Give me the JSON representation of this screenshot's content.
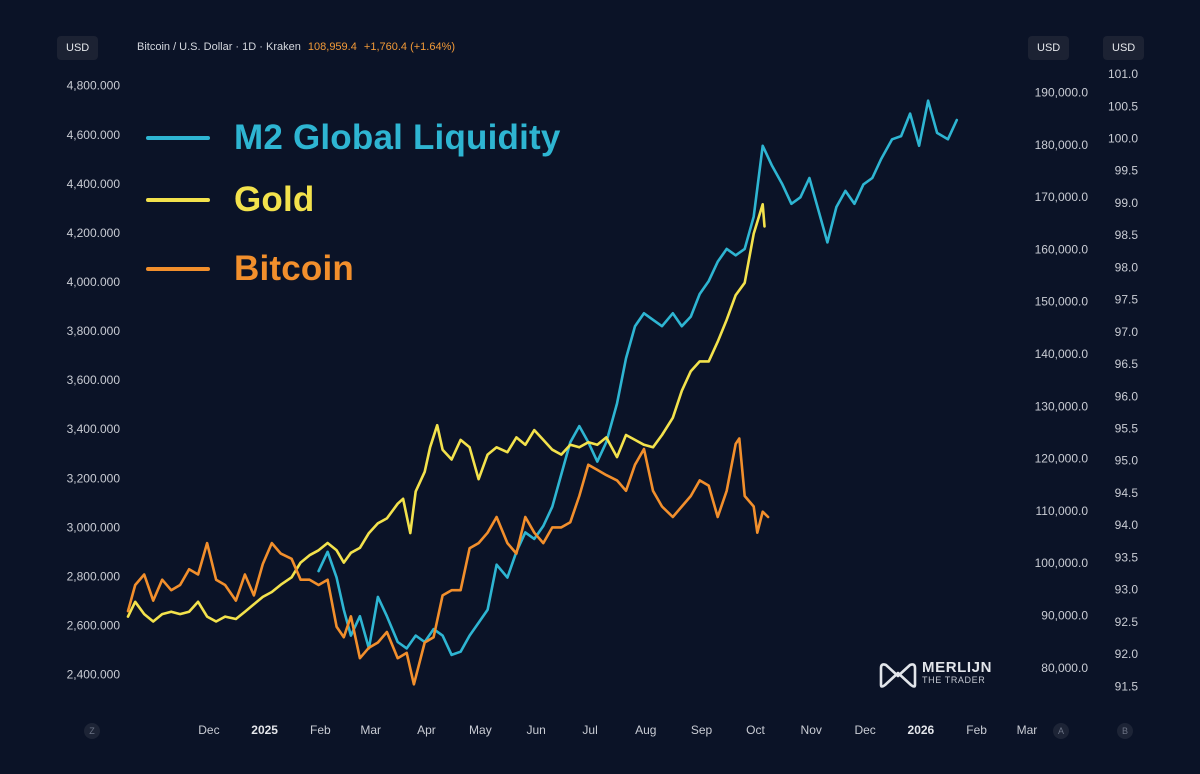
{
  "header": {
    "symbol": "Bitcoin / U.S. Dollar · 1D · Kraken",
    "price": "108,959.4",
    "change": "+1,760.4 (+1.64%)"
  },
  "badges": {
    "left_currency": "USD",
    "right_currency_1": "USD",
    "right_currency_2": "USD"
  },
  "corners": {
    "z": "Z",
    "a": "A",
    "b": "B"
  },
  "logo": {
    "main": "MERLIJN",
    "sub": "THE TRADER"
  },
  "chart_data": {
    "type": "line",
    "legend": [
      {
        "label": "M2 Global Liquidity",
        "color": "#2eb5d2"
      },
      {
        "label": "Gold",
        "color": "#f3e24c"
      },
      {
        "label": "Bitcoin",
        "color": "#f28f2c"
      }
    ],
    "legend_position": "top-left",
    "grid": false,
    "x_axis": {
      "ticks": [
        "Dec",
        "2025",
        "Feb",
        "Mar",
        "Apr",
        "May",
        "Jun",
        "Jul",
        "Aug",
        "Sep",
        "Oct",
        "Nov",
        "Dec",
        "2026",
        "Feb",
        "Mar"
      ],
      "bold_ticks": [
        "2025",
        "2026"
      ],
      "range": [
        "2024-11-01",
        "2026-03-01"
      ]
    },
    "y_axis_left": {
      "series": "Gold",
      "range": [
        2300,
        4900
      ],
      "ticks": [
        "2,400.000",
        "2,600.000",
        "2,800.000",
        "3,000.000",
        "3,200.000",
        "3,400.000",
        "3,600.000",
        "3,800.000",
        "4,000.000",
        "4,200.000",
        "4,400.000",
        "4,600.000",
        "4,800.000"
      ],
      "tick_values": [
        2400,
        2600,
        2800,
        3000,
        3200,
        3400,
        3600,
        3800,
        4000,
        4200,
        4400,
        4600,
        4800
      ]
    },
    "y_axis_right_1": {
      "series": "Bitcoin",
      "range": [
        74000,
        196000
      ],
      "ticks": [
        "80,000.0",
        "90,000.0",
        "100,000.0",
        "110,000.0",
        "120,000.0",
        "130,000.0",
        "140,000.0",
        "150,000.0",
        "160,000.0",
        "170,000.0",
        "180,000.0",
        "190,000.0"
      ],
      "tick_values": [
        80000,
        90000,
        100000,
        110000,
        120000,
        130000,
        140000,
        150000,
        160000,
        170000,
        180000,
        190000
      ]
    },
    "y_axis_right_2": {
      "series": "M2 Global Liquidity",
      "range": [
        91.3,
        101.2
      ],
      "ticks": [
        "91.5",
        "92.0",
        "92.5",
        "93.0",
        "93.5",
        "94.0",
        "94.5",
        "95.0",
        "95.5",
        "96.0",
        "96.5",
        "97.0",
        "97.5",
        "98.0",
        "98.5",
        "99.0",
        "99.5",
        "100.0",
        "100.5",
        "101.0"
      ],
      "tick_values": [
        91.5,
        92.0,
        92.5,
        93.0,
        93.5,
        94.0,
        94.5,
        95.0,
        95.5,
        96.0,
        96.5,
        97.0,
        97.5,
        98.0,
        98.5,
        99.0,
        99.5,
        100.0,
        100.5,
        101.0
      ]
    },
    "series": [
      {
        "name": "M2 Global Liquidity",
        "axis": "y_axis_right_2",
        "points": [
          [
            "2025-02-15",
            93.3
          ],
          [
            "2025-02-20",
            93.6
          ],
          [
            "2025-02-25",
            93.2
          ],
          [
            "2025-03-01",
            92.7
          ],
          [
            "2025-03-05",
            92.3
          ],
          [
            "2025-03-10",
            92.6
          ],
          [
            "2025-03-15",
            92.1
          ],
          [
            "2025-03-20",
            92.9
          ],
          [
            "2025-03-25",
            92.6
          ],
          [
            "2025-03-31",
            92.2
          ],
          [
            "2025-04-05",
            92.1
          ],
          [
            "2025-04-10",
            92.3
          ],
          [
            "2025-04-15",
            92.2
          ],
          [
            "2025-04-20",
            92.4
          ],
          [
            "2025-04-25",
            92.3
          ],
          [
            "2025-04-30",
            92.0
          ],
          [
            "2025-05-05",
            92.05
          ],
          [
            "2025-05-10",
            92.3
          ],
          [
            "2025-05-15",
            92.5
          ],
          [
            "2025-05-20",
            92.7
          ],
          [
            "2025-05-25",
            93.4
          ],
          [
            "2025-05-31",
            93.2
          ],
          [
            "2025-06-05",
            93.6
          ],
          [
            "2025-06-10",
            93.9
          ],
          [
            "2025-06-15",
            93.8
          ],
          [
            "2025-06-20",
            94.0
          ],
          [
            "2025-06-25",
            94.3
          ],
          [
            "2025-06-30",
            94.8
          ],
          [
            "2025-07-05",
            95.3
          ],
          [
            "2025-07-10",
            95.55
          ],
          [
            "2025-07-15",
            95.3
          ],
          [
            "2025-07-20",
            95.0
          ],
          [
            "2025-07-25",
            95.3
          ],
          [
            "2025-07-31",
            95.9
          ],
          [
            "2025-08-05",
            96.6
          ],
          [
            "2025-08-10",
            97.1
          ],
          [
            "2025-08-15",
            97.3
          ],
          [
            "2025-08-20",
            97.2
          ],
          [
            "2025-08-25",
            97.1
          ],
          [
            "2025-08-31",
            97.3
          ],
          [
            "2025-09-05",
            97.1
          ],
          [
            "2025-09-10",
            97.25
          ],
          [
            "2025-09-15",
            97.6
          ],
          [
            "2025-09-20",
            97.8
          ],
          [
            "2025-09-25",
            98.1
          ],
          [
            "2025-09-30",
            98.3
          ],
          [
            "2025-10-05",
            98.2
          ],
          [
            "2025-10-10",
            98.3
          ],
          [
            "2025-10-15",
            98.8
          ],
          [
            "2025-10-20",
            99.9
          ],
          [
            "2025-10-25",
            99.6
          ],
          [
            "2025-10-31",
            99.3
          ],
          [
            "2025-11-05",
            99.0
          ],
          [
            "2025-11-10",
            99.1
          ],
          [
            "2025-11-15",
            99.4
          ],
          [
            "2025-11-20",
            98.9
          ],
          [
            "2025-11-25",
            98.4
          ],
          [
            "2025-11-30",
            98.95
          ],
          [
            "2025-12-05",
            99.2
          ],
          [
            "2025-12-10",
            99.0
          ],
          [
            "2025-12-15",
            99.3
          ],
          [
            "2025-12-20",
            99.4
          ],
          [
            "2025-12-25",
            99.7
          ],
          [
            "2025-12-31",
            100.0
          ],
          [
            "2026-01-05",
            100.05
          ],
          [
            "2026-01-10",
            100.4
          ],
          [
            "2026-01-15",
            99.9
          ],
          [
            "2026-01-20",
            100.6
          ],
          [
            "2026-01-25",
            100.1
          ],
          [
            "2026-01-31",
            100.0
          ],
          [
            "2026-02-05",
            100.3
          ]
        ]
      },
      {
        "name": "Gold",
        "axis": "y_axis_left",
        "points": [
          [
            "2024-11-01",
            2640
          ],
          [
            "2024-11-05",
            2700
          ],
          [
            "2024-11-10",
            2650
          ],
          [
            "2024-11-15",
            2620
          ],
          [
            "2024-11-20",
            2650
          ],
          [
            "2024-11-25",
            2660
          ],
          [
            "2024-11-30",
            2650
          ],
          [
            "2024-12-05",
            2660
          ],
          [
            "2024-12-10",
            2700
          ],
          [
            "2024-12-15",
            2640
          ],
          [
            "2024-12-20",
            2620
          ],
          [
            "2024-12-25",
            2640
          ],
          [
            "2024-12-31",
            2630
          ],
          [
            "2025-01-05",
            2660
          ],
          [
            "2025-01-10",
            2690
          ],
          [
            "2025-01-15",
            2720
          ],
          [
            "2025-01-20",
            2740
          ],
          [
            "2025-01-25",
            2770
          ],
          [
            "2025-01-31",
            2800
          ],
          [
            "2025-02-05",
            2860
          ],
          [
            "2025-02-10",
            2890
          ],
          [
            "2025-02-15",
            2910
          ],
          [
            "2025-02-20",
            2940
          ],
          [
            "2025-02-25",
            2910
          ],
          [
            "2025-03-01",
            2860
          ],
          [
            "2025-03-05",
            2900
          ],
          [
            "2025-03-10",
            2920
          ],
          [
            "2025-03-15",
            2980
          ],
          [
            "2025-03-20",
            3020
          ],
          [
            "2025-03-25",
            3040
          ],
          [
            "2025-03-31",
            3100
          ],
          [
            "2025-04-03",
            3120
          ],
          [
            "2025-04-07",
            2980
          ],
          [
            "2025-04-10",
            3150
          ],
          [
            "2025-04-15",
            3230
          ],
          [
            "2025-04-18",
            3330
          ],
          [
            "2025-04-22",
            3420
          ],
          [
            "2025-04-25",
            3320
          ],
          [
            "2025-04-30",
            3280
          ],
          [
            "2025-05-05",
            3360
          ],
          [
            "2025-05-10",
            3330
          ],
          [
            "2025-05-15",
            3200
          ],
          [
            "2025-05-20",
            3300
          ],
          [
            "2025-05-25",
            3330
          ],
          [
            "2025-05-31",
            3310
          ],
          [
            "2025-06-05",
            3370
          ],
          [
            "2025-06-10",
            3340
          ],
          [
            "2025-06-15",
            3400
          ],
          [
            "2025-06-20",
            3360
          ],
          [
            "2025-06-25",
            3320
          ],
          [
            "2025-06-30",
            3300
          ],
          [
            "2025-07-05",
            3340
          ],
          [
            "2025-07-10",
            3330
          ],
          [
            "2025-07-15",
            3350
          ],
          [
            "2025-07-20",
            3340
          ],
          [
            "2025-07-25",
            3370
          ],
          [
            "2025-07-31",
            3290
          ],
          [
            "2025-08-05",
            3380
          ],
          [
            "2025-08-10",
            3360
          ],
          [
            "2025-08-15",
            3340
          ],
          [
            "2025-08-20",
            3330
          ],
          [
            "2025-08-25",
            3380
          ],
          [
            "2025-08-31",
            3450
          ],
          [
            "2025-09-05",
            3560
          ],
          [
            "2025-09-10",
            3640
          ],
          [
            "2025-09-15",
            3680
          ],
          [
            "2025-09-20",
            3680
          ],
          [
            "2025-09-25",
            3760
          ],
          [
            "2025-09-30",
            3850
          ],
          [
            "2025-10-05",
            3950
          ],
          [
            "2025-10-10",
            4000
          ],
          [
            "2025-10-15",
            4200
          ],
          [
            "2025-10-20",
            4320
          ],
          [
            "2025-10-21",
            4230
          ]
        ]
      },
      {
        "name": "Bitcoin",
        "axis": "y_axis_right_1",
        "points": [
          [
            "2024-11-01",
            91000
          ],
          [
            "2024-11-05",
            96000
          ],
          [
            "2024-11-10",
            98000
          ],
          [
            "2024-11-15",
            93000
          ],
          [
            "2024-11-20",
            97000
          ],
          [
            "2024-11-25",
            95000
          ],
          [
            "2024-11-30",
            96000
          ],
          [
            "2024-12-05",
            99000
          ],
          [
            "2024-12-10",
            98000
          ],
          [
            "2024-12-15",
            104000
          ],
          [
            "2024-12-20",
            97000
          ],
          [
            "2024-12-25",
            96000
          ],
          [
            "2024-12-31",
            93000
          ],
          [
            "2025-01-05",
            98000
          ],
          [
            "2025-01-10",
            94000
          ],
          [
            "2025-01-15",
            100000
          ],
          [
            "2025-01-20",
            104000
          ],
          [
            "2025-01-25",
            102000
          ],
          [
            "2025-01-31",
            101000
          ],
          [
            "2025-02-05",
            97000
          ],
          [
            "2025-02-10",
            97000
          ],
          [
            "2025-02-15",
            96000
          ],
          [
            "2025-02-20",
            97000
          ],
          [
            "2025-02-25",
            88000
          ],
          [
            "2025-03-01",
            86000
          ],
          [
            "2025-03-05",
            90000
          ],
          [
            "2025-03-10",
            82000
          ],
          [
            "2025-03-15",
            84000
          ],
          [
            "2025-03-20",
            85000
          ],
          [
            "2025-03-25",
            87000
          ],
          [
            "2025-03-31",
            82000
          ],
          [
            "2025-04-05",
            83000
          ],
          [
            "2025-04-09",
            77000
          ],
          [
            "2025-04-15",
            85000
          ],
          [
            "2025-04-20",
            86000
          ],
          [
            "2025-04-25",
            94000
          ],
          [
            "2025-04-30",
            95000
          ],
          [
            "2025-05-05",
            95000
          ],
          [
            "2025-05-10",
            103000
          ],
          [
            "2025-05-15",
            104000
          ],
          [
            "2025-05-20",
            106000
          ],
          [
            "2025-05-25",
            109000
          ],
          [
            "2025-05-31",
            104000
          ],
          [
            "2025-06-05",
            102000
          ],
          [
            "2025-06-10",
            109000
          ],
          [
            "2025-06-15",
            106000
          ],
          [
            "2025-06-20",
            104000
          ],
          [
            "2025-06-25",
            107000
          ],
          [
            "2025-06-30",
            107000
          ],
          [
            "2025-07-05",
            108000
          ],
          [
            "2025-07-10",
            113000
          ],
          [
            "2025-07-15",
            119000
          ],
          [
            "2025-07-20",
            118000
          ],
          [
            "2025-07-25",
            117000
          ],
          [
            "2025-07-31",
            116000
          ],
          [
            "2025-08-05",
            114000
          ],
          [
            "2025-08-10",
            119000
          ],
          [
            "2025-08-15",
            122000
          ],
          [
            "2025-08-20",
            114000
          ],
          [
            "2025-08-25",
            111000
          ],
          [
            "2025-08-31",
            109000
          ],
          [
            "2025-09-05",
            111000
          ],
          [
            "2025-09-10",
            113000
          ],
          [
            "2025-09-15",
            116000
          ],
          [
            "2025-09-20",
            115000
          ],
          [
            "2025-09-25",
            109000
          ],
          [
            "2025-09-30",
            114000
          ],
          [
            "2025-10-05",
            123000
          ],
          [
            "2025-10-07",
            124000
          ],
          [
            "2025-10-10",
            113000
          ],
          [
            "2025-10-15",
            111000
          ],
          [
            "2025-10-17",
            106000
          ],
          [
            "2025-10-20",
            110000
          ],
          [
            "2025-10-23",
            109000
          ]
        ]
      }
    ]
  }
}
